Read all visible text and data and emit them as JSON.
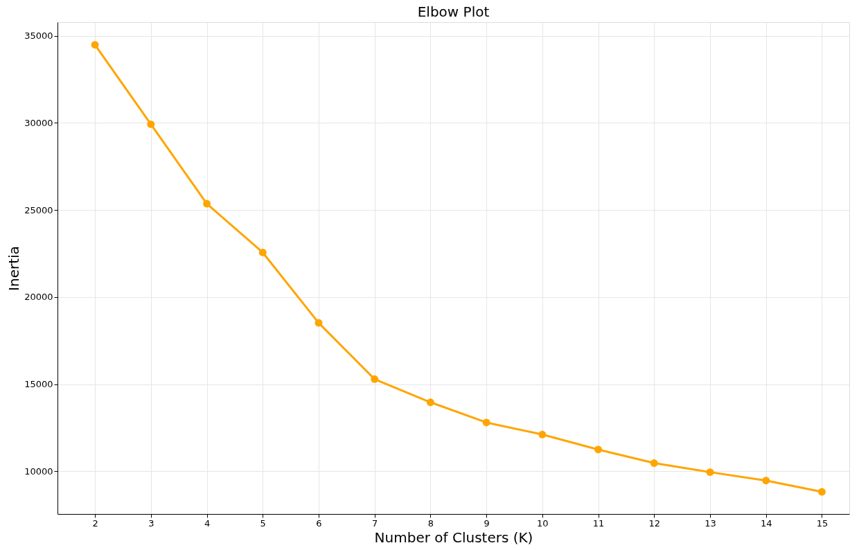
{
  "chart_data": {
    "type": "line",
    "title": "Elbow Plot",
    "xlabel": "Number of Clusters (K)",
    "ylabel": "Inertia",
    "x": [
      2,
      3,
      4,
      5,
      6,
      7,
      8,
      9,
      10,
      11,
      12,
      13,
      14,
      15
    ],
    "series": [
      {
        "color": "#ffa500",
        "values": [
          34480,
          29920,
          25360,
          22560,
          18520,
          15290,
          13960,
          12800,
          12110,
          11250,
          10470,
          9950,
          9470,
          8820
        ]
      }
    ],
    "xlim": [
      1.33,
      15.49
    ],
    "xticks": [
      2,
      3,
      4,
      5,
      6,
      7,
      8,
      9,
      10,
      11,
      12,
      13,
      14,
      15
    ],
    "ylim": [
      7550,
      35780
    ],
    "yticks": [
      10000,
      15000,
      20000,
      25000,
      30000,
      35000
    ],
    "grid": true,
    "marker": "circle",
    "line_style": "solid"
  }
}
